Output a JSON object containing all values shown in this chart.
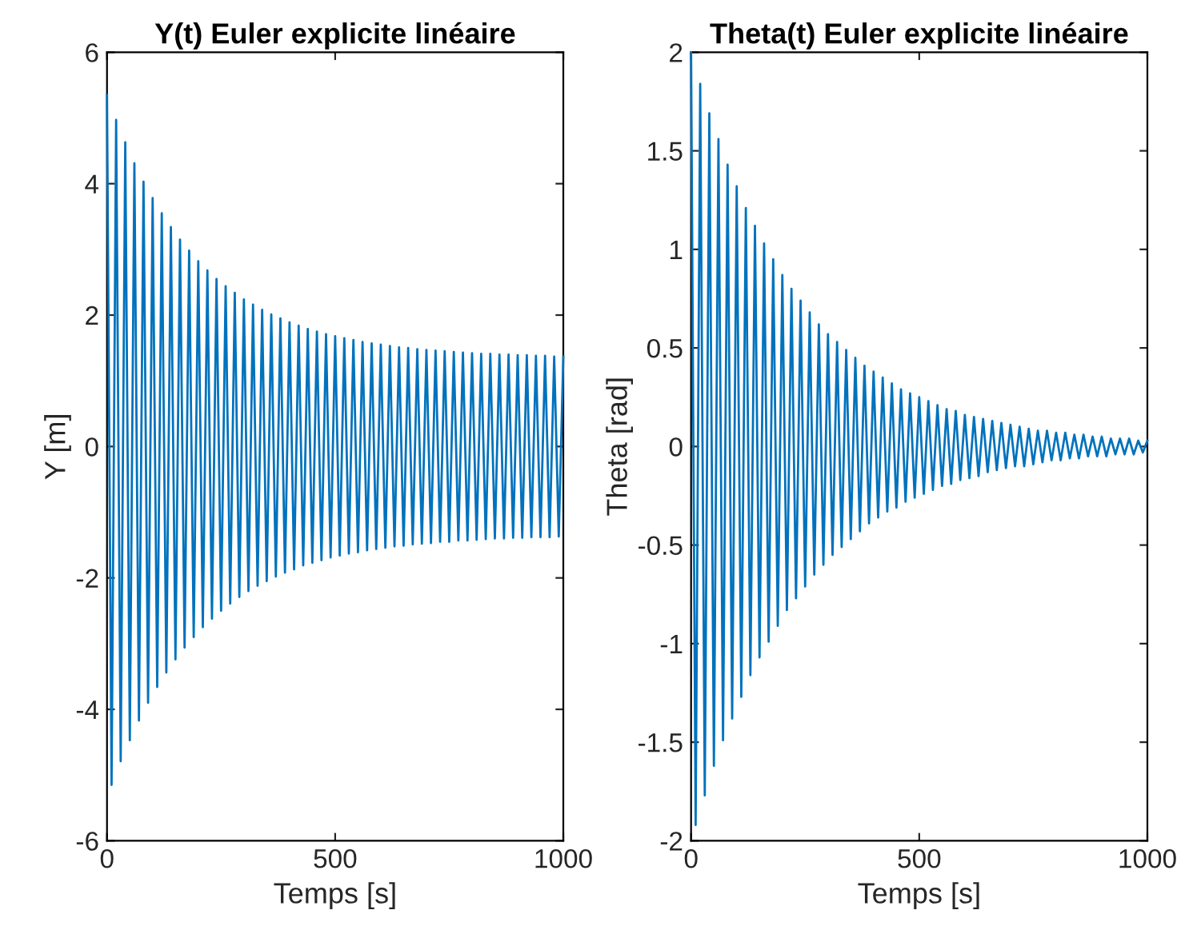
{
  "chart_data": [
    {
      "type": "line",
      "title": "Y(t) Euler explicite linéaire",
      "xlabel": "Temps [s]",
      "ylabel": "Y [m]",
      "xlim": [
        0,
        1000
      ],
      "ylim": [
        -6,
        6
      ],
      "xticks": [
        0,
        500,
        1000
      ],
      "yticks": [
        -6,
        -4,
        -2,
        0,
        2,
        4,
        6
      ],
      "grid": false,
      "legend": false,
      "marker": "none",
      "line_style": "solid",
      "x": [
        0,
        10,
        20,
        30,
        40,
        50,
        60,
        70,
        80,
        90,
        100,
        110,
        120,
        130,
        140,
        150,
        160,
        170,
        180,
        190,
        200,
        210,
        220,
        230,
        240,
        250,
        260,
        270,
        280,
        290,
        300,
        310,
        320,
        330,
        340,
        350,
        360,
        370,
        380,
        390,
        400,
        410,
        420,
        430,
        440,
        450,
        460,
        470,
        480,
        490,
        500,
        510,
        520,
        530,
        540,
        550,
        560,
        570,
        580,
        590,
        600,
        610,
        620,
        630,
        640,
        650,
        660,
        670,
        680,
        690,
        700,
        710,
        720,
        730,
        740,
        750,
        760,
        770,
        780,
        790,
        800,
        810,
        820,
        830,
        840,
        850,
        860,
        870,
        880,
        890,
        900,
        910,
        920,
        930,
        940,
        950,
        960,
        970,
        980,
        990,
        1000
      ],
      "series": [
        {
          "color": "#0072bd",
          "values": [
            5.35,
            -5.15,
            4.97,
            -4.79,
            4.63,
            -4.47,
            4.31,
            -4.17,
            4.03,
            -3.9,
            3.78,
            -3.66,
            3.55,
            -3.44,
            3.34,
            -3.24,
            3.15,
            -3.06,
            2.98,
            -2.9,
            2.82,
            -2.75,
            2.68,
            -2.62,
            2.55,
            -2.5,
            2.44,
            -2.39,
            2.34,
            -2.29,
            2.24,
            -2.2,
            2.16,
            -2.12,
            2.08,
            -2.05,
            2.01,
            -1.98,
            1.95,
            -1.92,
            1.89,
            -1.87,
            1.84,
            -1.81,
            1.79,
            -1.77,
            1.75,
            -1.73,
            1.71,
            -1.69,
            1.68,
            -1.66,
            1.65,
            -1.63,
            1.62,
            -1.61,
            1.59,
            -1.58,
            1.57,
            -1.56,
            1.55,
            -1.54,
            1.53,
            -1.52,
            1.51,
            -1.51,
            1.5,
            -1.49,
            1.48,
            -1.48,
            1.47,
            -1.47,
            1.46,
            -1.45,
            1.45,
            -1.45,
            1.44,
            -1.43,
            1.43,
            -1.43,
            1.42,
            -1.42,
            1.41,
            -1.41,
            1.41,
            -1.4,
            1.4,
            -1.4,
            1.4,
            -1.39,
            1.39,
            -1.39,
            1.39,
            -1.38,
            1.38,
            -1.38,
            1.38,
            -1.38,
            1.37,
            -1.37,
            1.37
          ]
        }
      ]
    },
    {
      "type": "line",
      "title": "Theta(t) Euler explicite linéaire",
      "xlabel": "Temps [s]",
      "ylabel": "Theta [rad]",
      "xlim": [
        0,
        1000
      ],
      "ylim": [
        -2,
        2
      ],
      "xticks": [
        0,
        500,
        1000
      ],
      "yticks": [
        -2,
        -1.5,
        -1,
        -0.5,
        0,
        0.5,
        1,
        1.5,
        2
      ],
      "grid": false,
      "legend": false,
      "marker": "none",
      "line_style": "solid",
      "x": [
        0,
        10,
        20,
        30,
        40,
        50,
        60,
        70,
        80,
        90,
        100,
        110,
        120,
        130,
        140,
        150,
        160,
        170,
        180,
        190,
        200,
        210,
        220,
        230,
        240,
        250,
        260,
        270,
        280,
        290,
        300,
        310,
        320,
        330,
        340,
        350,
        360,
        370,
        380,
        390,
        400,
        410,
        420,
        430,
        440,
        450,
        460,
        470,
        480,
        490,
        500,
        510,
        520,
        530,
        540,
        550,
        560,
        570,
        580,
        590,
        600,
        610,
        620,
        630,
        640,
        650,
        660,
        670,
        680,
        690,
        700,
        710,
        720,
        730,
        740,
        750,
        760,
        770,
        780,
        790,
        800,
        810,
        820,
        830,
        840,
        850,
        860,
        870,
        880,
        890,
        900,
        910,
        920,
        930,
        940,
        950,
        960,
        970,
        980,
        990,
        1000
      ],
      "series": [
        {
          "color": "#0072bd",
          "values": [
            2.0,
            -1.92,
            1.84,
            -1.77,
            1.69,
            -1.62,
            1.56,
            -1.49,
            1.43,
            -1.38,
            1.32,
            -1.27,
            1.21,
            -1.16,
            1.12,
            -1.07,
            1.03,
            -0.99,
            0.95,
            -0.91,
            0.87,
            -0.83,
            0.8,
            -0.77,
            0.74,
            -0.71,
            0.68,
            -0.65,
            0.62,
            -0.6,
            0.57,
            -0.55,
            0.53,
            -0.51,
            0.49,
            -0.47,
            0.45,
            -0.43,
            0.41,
            -0.39,
            0.38,
            -0.36,
            0.35,
            -0.33,
            0.32,
            -0.31,
            0.29,
            -0.28,
            0.27,
            -0.26,
            0.25,
            -0.24,
            0.23,
            -0.22,
            0.21,
            -0.2,
            0.19,
            -0.19,
            0.18,
            -0.17,
            0.16,
            -0.16,
            0.15,
            -0.15,
            0.14,
            -0.13,
            0.13,
            -0.12,
            0.12,
            -0.11,
            0.11,
            -0.1,
            0.1,
            -0.1,
            0.09,
            -0.09,
            0.08,
            -0.08,
            0.08,
            -0.07,
            0.07,
            -0.07,
            0.07,
            -0.06,
            0.06,
            -0.06,
            0.06,
            -0.05,
            0.05,
            -0.05,
            0.05,
            -0.05,
            0.04,
            -0.04,
            0.04,
            -0.04,
            0.04,
            -0.04,
            0.03,
            -0.03,
            0.03
          ]
        }
      ]
    }
  ]
}
